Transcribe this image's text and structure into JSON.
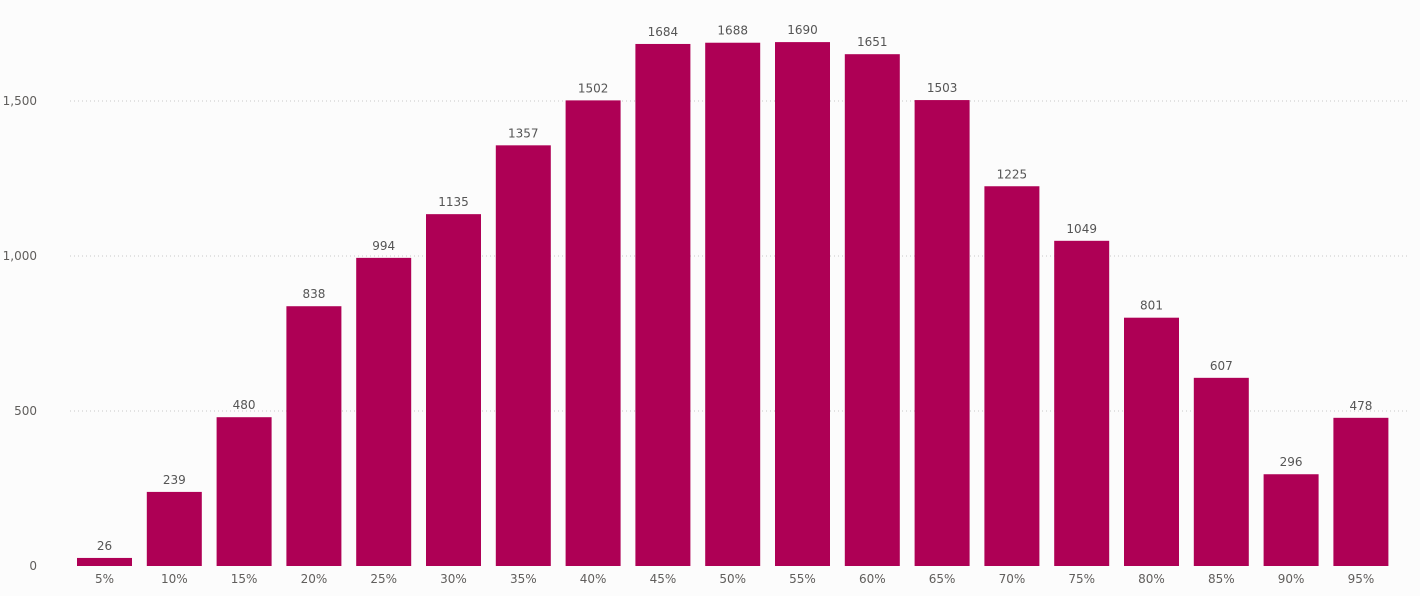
{
  "chart_data": {
    "type": "bar",
    "categories": [
      "5%",
      "10%",
      "15%",
      "20%",
      "25%",
      "30%",
      "35%",
      "40%",
      "45%",
      "50%",
      "55%",
      "60%",
      "65%",
      "70%",
      "75%",
      "80%",
      "85%",
      "90%",
      "95%"
    ],
    "values": [
      26,
      239,
      480,
      838,
      994,
      1135,
      1357,
      1502,
      1684,
      1688,
      1690,
      1651,
      1503,
      1225,
      1049,
      801,
      607,
      296,
      478
    ],
    "title": "",
    "xlabel": "",
    "ylabel": "",
    "ylim": [
      0,
      1750
    ],
    "yticks": [
      0,
      500,
      1000,
      1500
    ],
    "ytick_labels": [
      "0",
      "500",
      "1,000",
      "1,500"
    ],
    "grid": true,
    "data_labels": true,
    "bar_color": "#ae0055"
  }
}
